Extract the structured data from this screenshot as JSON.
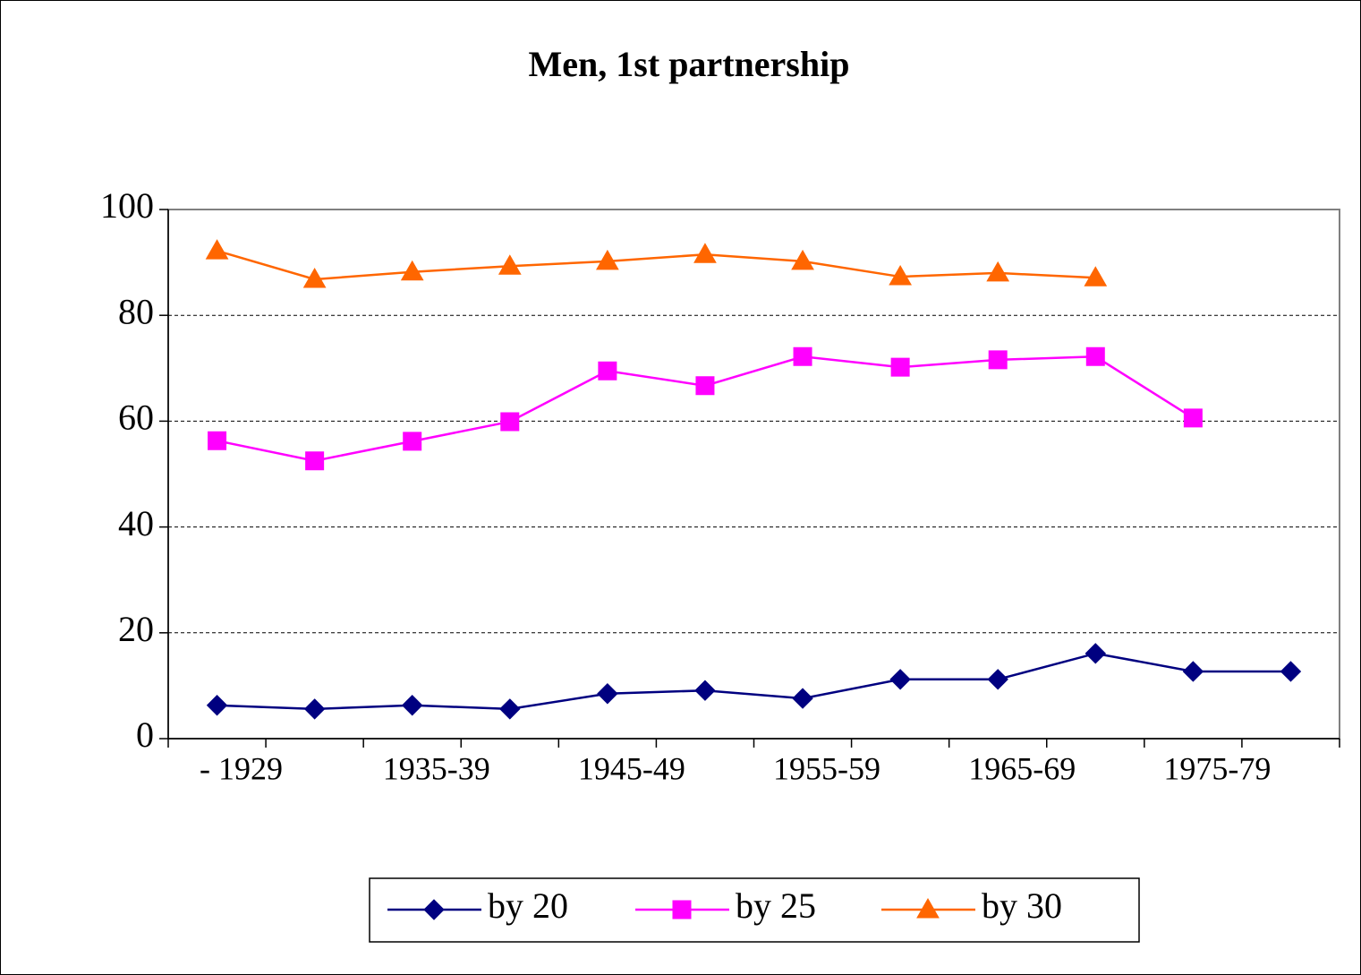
{
  "chart_data": {
    "type": "line",
    "title": "Men, 1st partnership",
    "categories": [
      "- 1929",
      null,
      "1935-39",
      null,
      "1945-49",
      null,
      "1955-59",
      null,
      "1965-69",
      null,
      "1975-79",
      null
    ],
    "series": [
      {
        "name": "by 20",
        "color": "#000080",
        "marker": "diamond",
        "values": [
          6.3,
          5.6,
          6.3,
          5.6,
          8.5,
          9.1,
          7.6,
          11.2,
          11.2,
          16.1,
          12.7,
          12.7
        ]
      },
      {
        "name": "by 25",
        "color": "#ff00ff",
        "marker": "square",
        "values": [
          56.3,
          52.5,
          56.2,
          59.9,
          69.5,
          66.7,
          72.2,
          70.2,
          71.6,
          72.2,
          60.6,
          null
        ]
      },
      {
        "name": "by 30",
        "color": "#ff6600",
        "marker": "triangle",
        "values": [
          92.2,
          86.8,
          88.2,
          89.3,
          90.2,
          91.5,
          90.2,
          87.3,
          88.0,
          87.1,
          null,
          null
        ]
      }
    ],
    "ylim": [
      0,
      100
    ],
    "yticks": [
      0,
      20,
      40,
      60,
      80,
      100
    ],
    "grid": true,
    "legend": "bottom"
  }
}
